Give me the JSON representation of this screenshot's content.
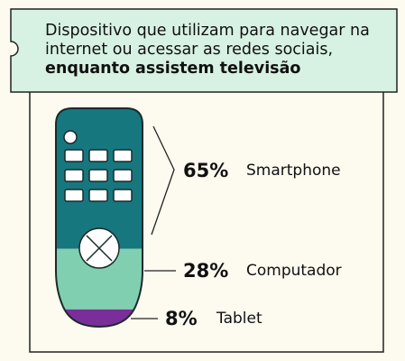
{
  "chart_data": {
    "type": "pictorial",
    "title": "Dispositivo que utilizam para navegar na internet ou acessar as redes sociais,",
    "title_emphasis": "enquanto assistem televisão",
    "categories": [
      "Smartphone",
      "Computador",
      "Tablet"
    ],
    "values": [
      65,
      28,
      8
    ],
    "value_labels": [
      "65%",
      "28%",
      "8%"
    ],
    "colors": [
      "#17777f",
      "#80cfb1",
      "#7a2e9a"
    ]
  }
}
